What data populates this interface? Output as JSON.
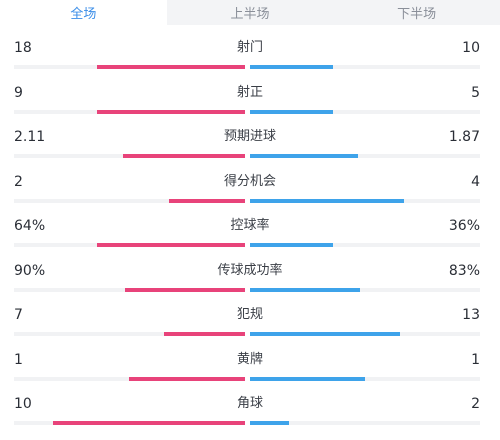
{
  "tabs": [
    {
      "label": "全场",
      "active": true
    },
    {
      "label": "上半场",
      "active": false
    },
    {
      "label": "下半场",
      "active": false
    }
  ],
  "colors": {
    "home_bar": "#e8437a",
    "away_bar": "#3ea3ea",
    "active_tab": "#3b8ee8"
  },
  "stats": [
    {
      "label": "射门",
      "home": "18",
      "away": "10",
      "home_fill": 0.64,
      "away_fill": 0.36
    },
    {
      "label": "射正",
      "home": "9",
      "away": "5",
      "home_fill": 0.64,
      "away_fill": 0.36
    },
    {
      "label": "预期进球",
      "home": "2.11",
      "away": "1.87",
      "home_fill": 0.53,
      "away_fill": 0.47
    },
    {
      "label": "得分机会",
      "home": "2",
      "away": "4",
      "home_fill": 0.33,
      "away_fill": 0.67
    },
    {
      "label": "控球率",
      "home": "64%",
      "away": "36%",
      "home_fill": 0.64,
      "away_fill": 0.36
    },
    {
      "label": "传球成功率",
      "home": "90%",
      "away": "83%",
      "home_fill": 0.52,
      "away_fill": 0.48
    },
    {
      "label": "犯规",
      "home": "7",
      "away": "13",
      "home_fill": 0.35,
      "away_fill": 0.65
    },
    {
      "label": "黄牌",
      "home": "1",
      "away": "1",
      "home_fill": 0.5,
      "away_fill": 0.5
    },
    {
      "label": "角球",
      "home": "10",
      "away": "2",
      "home_fill": 0.83,
      "away_fill": 0.17
    }
  ]
}
